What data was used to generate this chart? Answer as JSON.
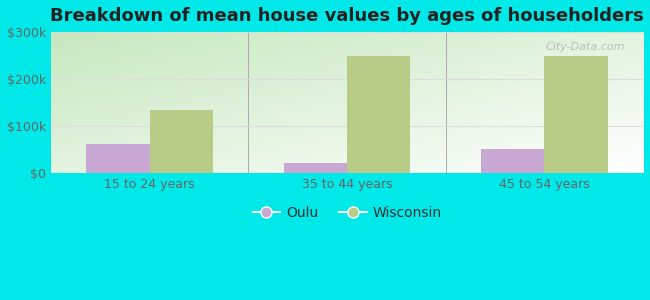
{
  "title": "Breakdown of mean house values by ages of householders",
  "categories": [
    "15 to 24 years",
    "35 to 44 years",
    "45 to 54 years"
  ],
  "oulu_values": [
    62000,
    22000,
    52000
  ],
  "wisconsin_values": [
    135000,
    248000,
    248000
  ],
  "oulu_color": "#c9a8d4",
  "wisconsin_color": "#b8cc88",
  "background_plot_top": "#c8e8c0",
  "background_plot_bottom": "#f0faf0",
  "background_fig": "#00e8e8",
  "ylim": [
    0,
    300000
  ],
  "yticks": [
    0,
    100000,
    200000,
    300000
  ],
  "ytick_labels": [
    "$0",
    "$100k",
    "$200k",
    "$300k"
  ],
  "legend_labels": [
    "Oulu",
    "Wisconsin"
  ],
  "bar_width": 0.32,
  "title_fontsize": 13,
  "tick_fontsize": 9,
  "watermark": "City-Data.com"
}
